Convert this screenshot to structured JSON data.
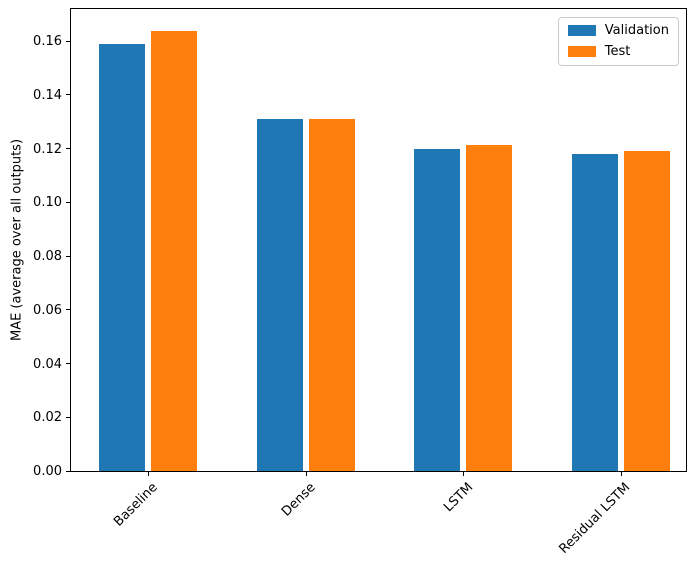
{
  "chart_data": {
    "type": "bar",
    "title": "",
    "xlabel": "",
    "ylabel": "MAE (average over all outputs)",
    "categories": [
      "Baseline",
      "Dense",
      "LSTM",
      "Residual LSTM"
    ],
    "series": [
      {
        "name": "Validation",
        "color": "#1f77b4",
        "values": [
          0.159,
          0.131,
          0.12,
          0.118
        ]
      },
      {
        "name": "Test",
        "color": "#ff7f0e",
        "values": [
          0.164,
          0.131,
          0.1215,
          0.119
        ]
      }
    ],
    "ylim": [
      0,
      0.172
    ],
    "yticks": [
      {
        "value": 0.0,
        "label": "0.00"
      },
      {
        "value": 0.02,
        "label": "0.02"
      },
      {
        "value": 0.04,
        "label": "0.04"
      },
      {
        "value": 0.06,
        "label": "0.06"
      },
      {
        "value": 0.08,
        "label": "0.08"
      },
      {
        "value": 0.1,
        "label": "0.10"
      },
      {
        "value": 0.12,
        "label": "0.12"
      },
      {
        "value": 0.14,
        "label": "0.14"
      },
      {
        "value": 0.16,
        "label": "0.16"
      }
    ],
    "xtick_rotation": 45,
    "grid": false,
    "legend_position": "upper right"
  }
}
